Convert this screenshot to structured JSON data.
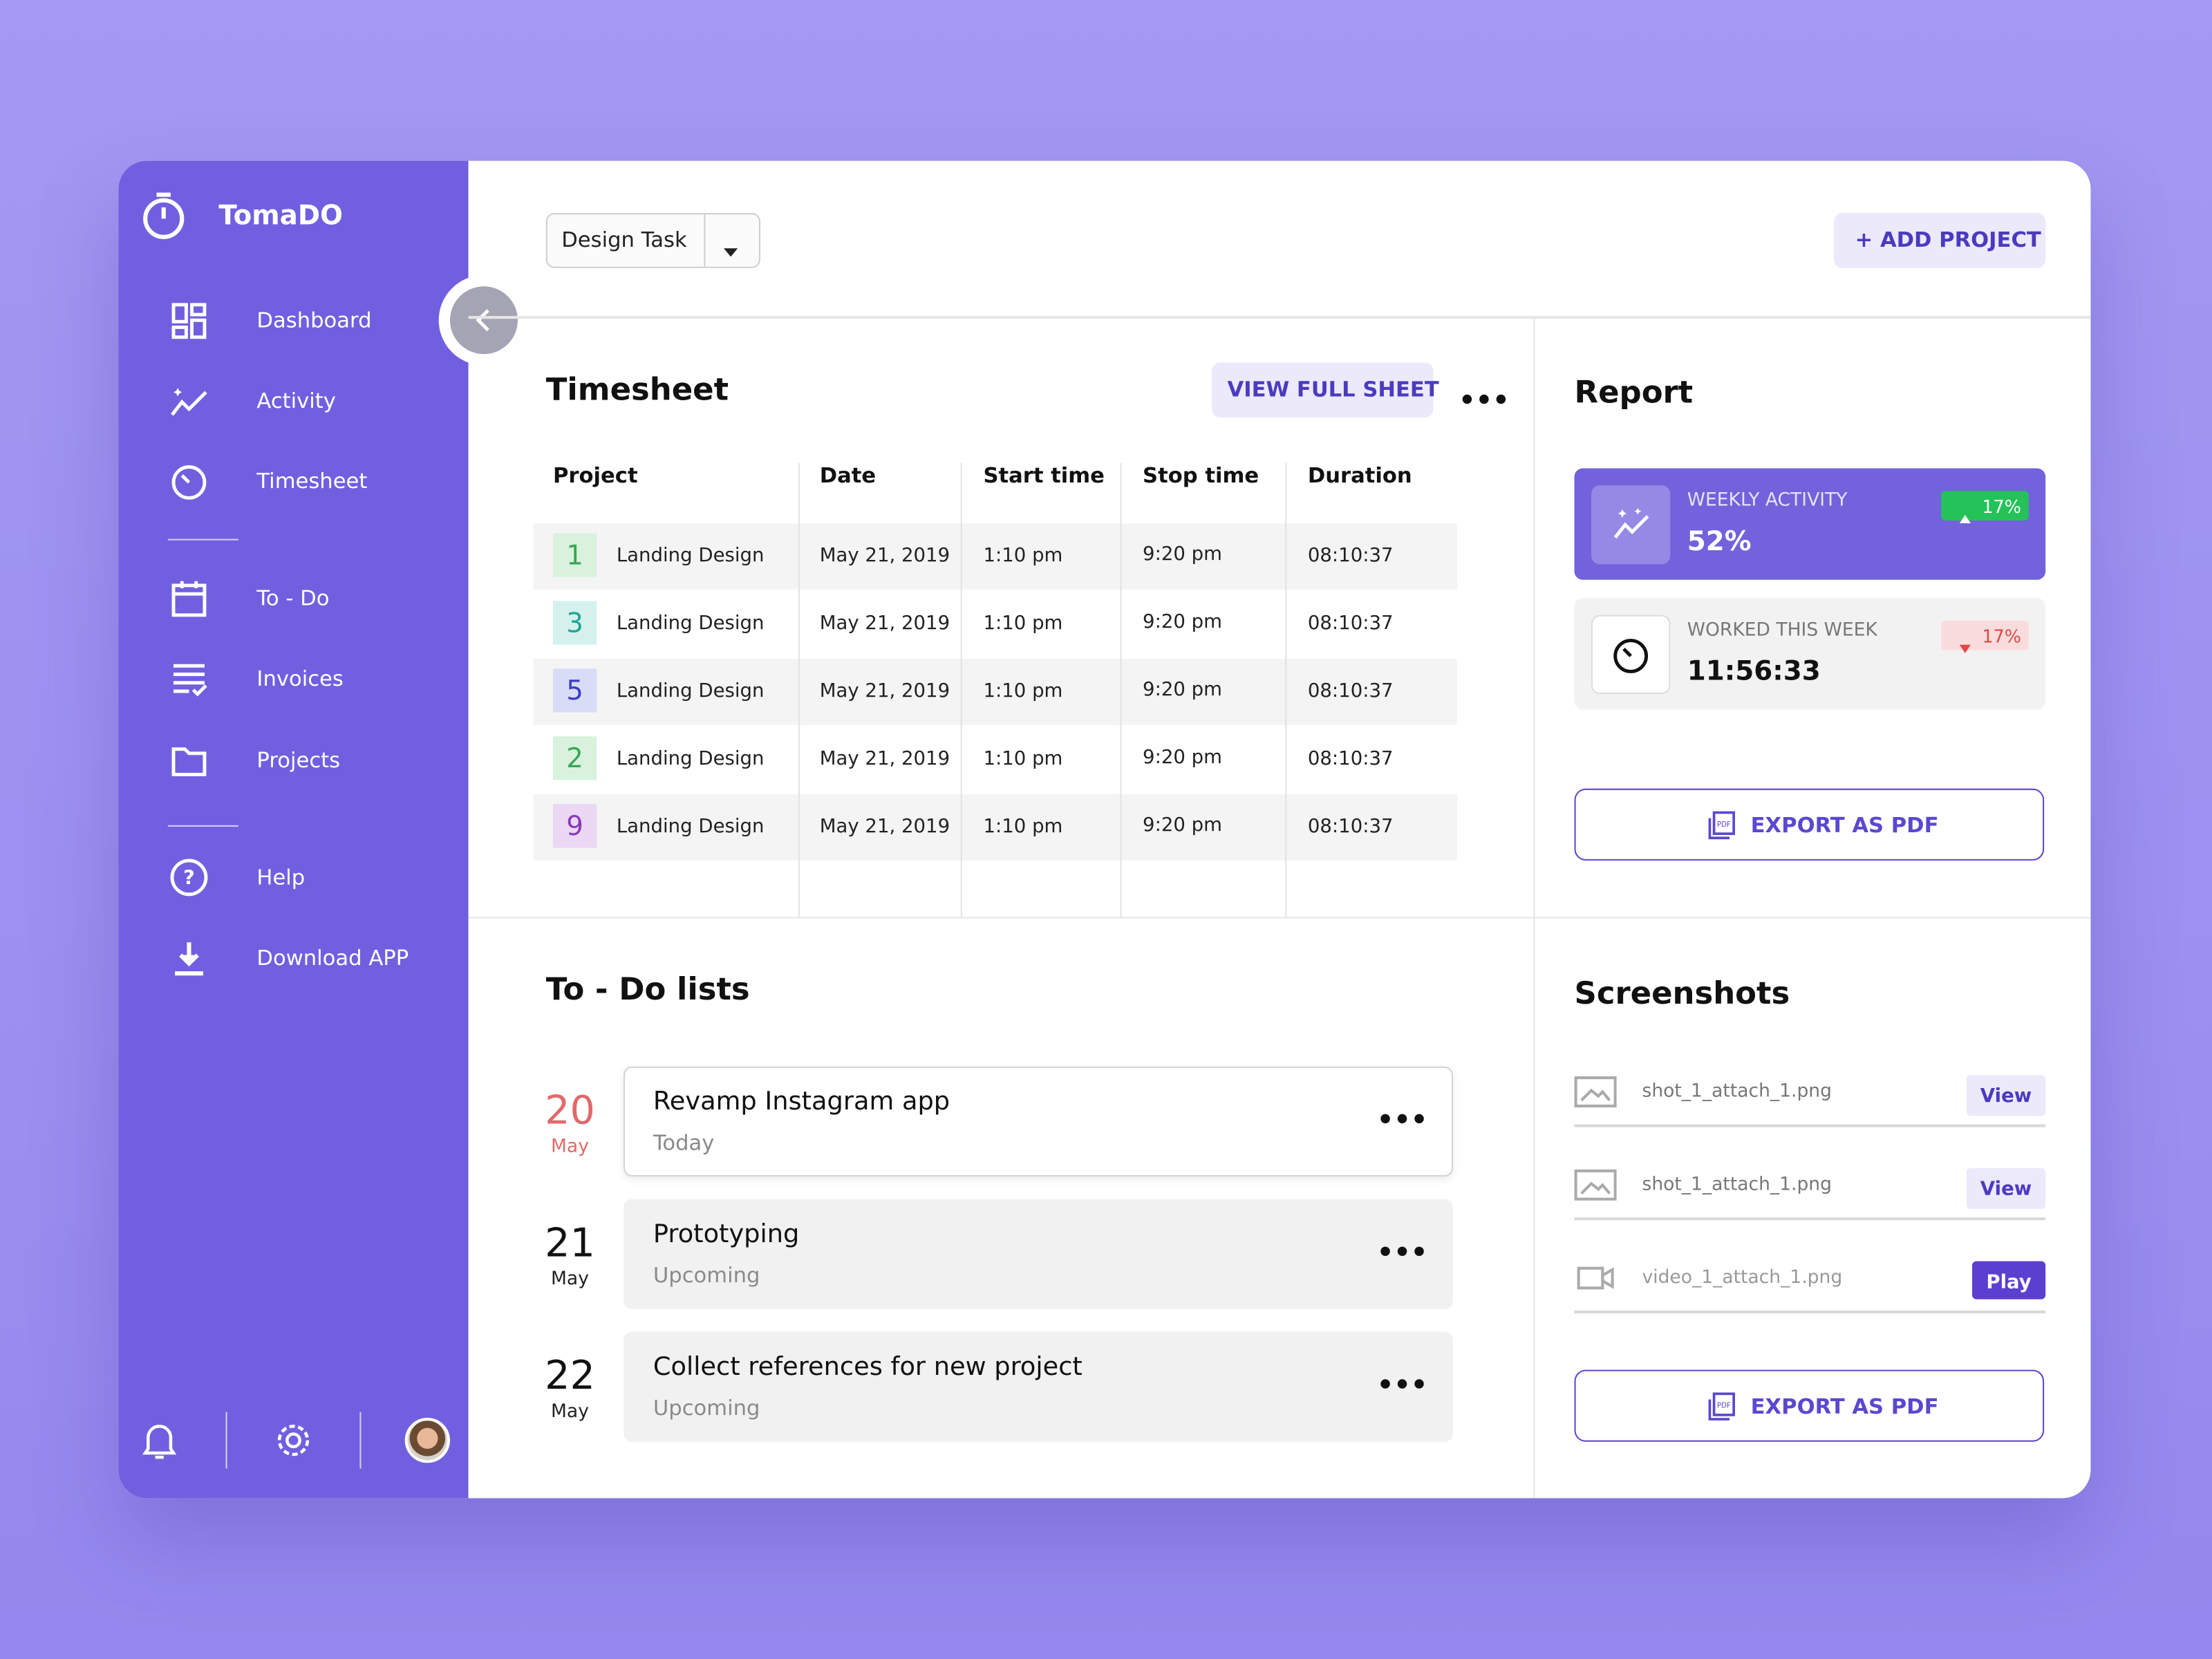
{
  "app": {
    "name": "TomaDO"
  },
  "nav": {
    "primary": [
      "Dashboard",
      "Activity",
      "Timesheet"
    ],
    "secondary": [
      "To - Do",
      "Invoices",
      "Projects"
    ],
    "tertiary": [
      "Help",
      "Download APP"
    ]
  },
  "toolbar": {
    "dropdown": "Design Task",
    "add_button": "+ ADD PROJECT"
  },
  "timesheet": {
    "title": "Timesheet",
    "view_button": "VIEW FULL SHEET",
    "columns": [
      "Project",
      "Date",
      "Start time",
      "Stop time",
      "Duration"
    ],
    "rows": [
      [
        "1",
        "Landing Design",
        "May 21, 2019",
        "1:10 pm",
        "9:20 pm",
        "08:10:37"
      ],
      [
        "3",
        "Landing Design",
        "May 21, 2019",
        "1:10 pm",
        "9:20 pm",
        "08:10:37"
      ],
      [
        "5",
        "Landing Design",
        "May 21, 2019",
        "1:10 pm",
        "9:20 pm",
        "08:10:37"
      ],
      [
        "2",
        "Landing Design",
        "May 21, 2019",
        "1:10 pm",
        "9:20 pm",
        "08:10:37"
      ],
      [
        "9",
        "Landing Design",
        "May 21, 2019",
        "1:10 pm",
        "9:20 pm",
        "08:10:37"
      ]
    ]
  },
  "report": {
    "title": "Report",
    "cards": [
      {
        "label": "WEEKLY ACTIVITY",
        "value": "52%",
        "change": "17%"
      },
      {
        "label": "WORKED THIS WEEK",
        "value": "11:56:33",
        "change": "17%"
      }
    ],
    "export": "EXPORT AS PDF"
  },
  "todo": {
    "title": "To - Do lists",
    "items": [
      {
        "day": "20",
        "month": "May",
        "title": "Revamp Instagram app",
        "status": "Today"
      },
      {
        "day": "21",
        "month": "May",
        "title": "Prototyping",
        "status": "Upcoming"
      },
      {
        "day": "22",
        "month": "May",
        "title": "Collect references for new project",
        "status": "Upcoming"
      }
    ]
  },
  "screenshots": {
    "title": "Screenshots",
    "files": [
      {
        "name": "shot_1_attach_1.png",
        "action": "View"
      },
      {
        "name": "shot_1_attach_1.png",
        "action": "View"
      },
      {
        "name": "video_1_attach_1.png",
        "action": "Play"
      }
    ],
    "export": "EXPORT AS PDF"
  }
}
